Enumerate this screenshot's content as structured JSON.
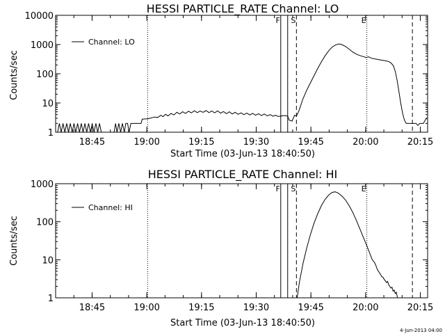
{
  "chart_data": [
    {
      "type": "line",
      "title": "HESSI PARTICLE_RATE Channel: LO",
      "xlabel": "Start Time (03-Jun-13 18:40:50)",
      "ylabel": "Counts/sec",
      "yscale": "log",
      "ylim": [
        1,
        10000
      ],
      "yticks": [
        1,
        10,
        100,
        1000,
        10000
      ],
      "ytick_labels": [
        "1",
        "10",
        "100",
        "1000",
        "10000"
      ],
      "xlim": [
        -5.83,
        96.17
      ],
      "xticks": [
        4.17,
        19.17,
        34.17,
        49.17,
        64.17,
        79.17,
        94.17
      ],
      "xtick_labels": [
        "18:45",
        "19:00",
        "19:15",
        "19:30",
        "19:45",
        "20:00",
        "20:15"
      ],
      "legend": {
        "label": "Channel: LO",
        "position": "top-left"
      },
      "markers": [
        {
          "label": "F",
          "x": 55.9,
          "style": "solid"
        },
        {
          "label": "",
          "x": 57.8,
          "style": "solid"
        },
        {
          "label": "S",
          "x": 60.2,
          "style": "dashed"
        },
        {
          "label": "E",
          "x": 79.5,
          "style": "dotted"
        },
        {
          "label": "",
          "x": 92.0,
          "style": "dashed"
        },
        {
          "label": "",
          "x": 97.0,
          "style": "dotted"
        },
        {
          "label": "",
          "x": 19.4,
          "style": "dotted"
        }
      ],
      "series": [
        {
          "values": [
            [
              -5.3,
              1
            ],
            [
              -4.8,
              2
            ],
            [
              -4.3,
              1
            ],
            [
              -3.8,
              2
            ],
            [
              -3.3,
              1
            ],
            [
              -2.8,
              2
            ],
            [
              -2.3,
              1
            ],
            [
              -1.8,
              2
            ],
            [
              -1.3,
              1
            ],
            [
              -0.8,
              2
            ],
            [
              -0.3,
              1
            ],
            [
              0.2,
              2
            ],
            [
              0.7,
              1
            ],
            [
              1.2,
              2
            ],
            [
              1.7,
              1
            ],
            [
              2.2,
              2
            ],
            [
              2.7,
              1
            ],
            [
              3.2,
              2
            ],
            [
              3.7,
              1
            ],
            [
              4.2,
              2
            ],
            [
              4.7,
              1
            ],
            [
              5.2,
              2
            ],
            [
              5.7,
              1
            ],
            [
              6.2,
              2
            ],
            [
              6.7,
              1
            ],
            [
              7.4,
              1
            ],
            [
              8.2,
              1
            ],
            [
              9.2,
              1
            ],
            [
              10.2,
              1
            ],
            [
              10.6,
              2
            ],
            [
              11.0,
              1
            ],
            [
              11.5,
              2
            ],
            [
              12.0,
              1
            ],
            [
              12.5,
              2
            ],
            [
              13.0,
              1
            ],
            [
              13.4,
              2
            ],
            [
              13.9,
              2
            ],
            [
              14.3,
              1
            ],
            [
              14.8,
              2
            ],
            [
              15.3,
              2
            ],
            [
              15.8,
              2
            ],
            [
              16.3,
              2
            ],
            [
              16.8,
              2
            ],
            [
              17.2,
              2
            ],
            [
              17.6,
              2
            ],
            [
              17.9,
              2.8
            ],
            [
              19.5,
              2.9
            ],
            [
              20.4,
              3.1
            ],
            [
              21.3,
              3.3
            ],
            [
              22.2,
              3.2
            ],
            [
              23.0,
              3.8
            ],
            [
              23.6,
              3.4
            ],
            [
              24.3,
              4.1
            ],
            [
              25.0,
              3.6
            ],
            [
              25.8,
              4.4
            ],
            [
              26.6,
              3.9
            ],
            [
              27.4,
              4.8
            ],
            [
              28.2,
              4.2
            ],
            [
              29.0,
              5.0
            ],
            [
              29.8,
              4.4
            ],
            [
              30.6,
              5.2
            ],
            [
              31.4,
              4.6
            ],
            [
              32.2,
              5.4
            ],
            [
              33.0,
              4.7
            ],
            [
              33.8,
              5.3
            ],
            [
              34.6,
              4.8
            ],
            [
              35.4,
              5.5
            ],
            [
              36.2,
              4.7
            ],
            [
              37.0,
              5.3
            ],
            [
              37.8,
              4.6
            ],
            [
              38.6,
              5.4
            ],
            [
              39.4,
              4.5
            ],
            [
              40.2,
              5.1
            ],
            [
              41.0,
              4.3
            ],
            [
              41.8,
              5.0
            ],
            [
              42.6,
              4.2
            ],
            [
              43.4,
              4.8
            ],
            [
              44.2,
              4.1
            ],
            [
              45.0,
              4.6
            ],
            [
              45.8,
              4.0
            ],
            [
              46.6,
              4.5
            ],
            [
              47.4,
              3.9
            ],
            [
              48.2,
              4.4
            ],
            [
              49.0,
              3.8
            ],
            [
              49.8,
              4.3
            ],
            [
              50.6,
              3.7
            ],
            [
              51.4,
              4.2
            ],
            [
              52.2,
              3.6
            ],
            [
              53.0,
              4.0
            ],
            [
              53.8,
              3.5
            ],
            [
              54.5,
              3.8
            ],
            [
              55.0,
              3.5
            ],
            [
              55.9,
              3.5
            ],
            [
              56.4,
              3.7
            ],
            [
              57.8,
              3.6
            ],
            [
              58.2,
              2.6
            ],
            [
              59.0,
              2.4
            ],
            [
              59.7,
              3.8
            ],
            [
              60.2,
              3.5
            ],
            [
              60.9,
              5.5
            ],
            [
              62.0,
              14
            ],
            [
              63.0,
              27
            ],
            [
              64.0,
              48
            ],
            [
              65.0,
              85
            ],
            [
              66.0,
              150
            ],
            [
              67.0,
              250
            ],
            [
              68.0,
              400
            ],
            [
              69.0,
              600
            ],
            [
              70.0,
              820
            ],
            [
              71.0,
              980
            ],
            [
              71.8,
              1050
            ],
            [
              72.6,
              1000
            ],
            [
              73.6,
              870
            ],
            [
              74.6,
              700
            ],
            [
              75.6,
              560
            ],
            [
              76.6,
              470
            ],
            [
              77.6,
              420
            ],
            [
              78.4,
              390
            ],
            [
              79.3,
              360
            ],
            [
              80.0,
              380
            ],
            [
              80.8,
              340
            ],
            [
              81.8,
              320
            ],
            [
              82.8,
              305
            ],
            [
              83.8,
              290
            ],
            [
              84.8,
              275
            ],
            [
              85.6,
              258
            ],
            [
              86.2,
              230
            ],
            [
              86.8,
              185
            ],
            [
              87.3,
              120
            ],
            [
              87.8,
              60
            ],
            [
              88.3,
              25
            ],
            [
              88.8,
              10
            ],
            [
              89.3,
              4.5
            ],
            [
              89.8,
              2.6
            ],
            [
              90.3,
              2.0
            ],
            [
              92.0,
              2.0
            ],
            [
              93.0,
              2.0
            ],
            [
              93.5,
              1.7
            ],
            [
              94.0,
              2.0
            ],
            [
              95.0,
              2.0
            ],
            [
              95.5,
              2.6
            ],
            [
              95.9,
              3.0
            ]
          ]
        }
      ]
    },
    {
      "type": "line",
      "title": "HESSI PARTICLE_RATE Channel: HI",
      "xlabel": "Start Time (03-Jun-13 18:40:50)",
      "ylabel": "Counts/sec",
      "yscale": "log",
      "ylim": [
        1,
        1000
      ],
      "yticks": [
        1,
        10,
        100,
        1000
      ],
      "ytick_labels": [
        "1",
        "10",
        "100",
        "1000"
      ],
      "xlim": [
        -5.83,
        96.17
      ],
      "xticks": [
        4.17,
        19.17,
        34.17,
        49.17,
        64.17,
        79.17,
        94.17
      ],
      "xtick_labels": [
        "18:45",
        "19:00",
        "19:15",
        "19:30",
        "19:45",
        "20:00",
        "20:15"
      ],
      "legend": {
        "label": "Channel: HI",
        "position": "top-left"
      },
      "markers": [
        {
          "label": "F",
          "x": 55.9,
          "style": "solid"
        },
        {
          "label": "",
          "x": 57.8,
          "style": "solid"
        },
        {
          "label": "S",
          "x": 60.2,
          "style": "dashed"
        },
        {
          "label": "E",
          "x": 79.5,
          "style": "dotted"
        },
        {
          "label": "",
          "x": 92.0,
          "style": "dashed"
        },
        {
          "label": "",
          "x": 97.0,
          "style": "dotted"
        },
        {
          "label": "",
          "x": 19.4,
          "style": "dotted"
        }
      ],
      "series": [
        {
          "values": [
            [
              60.4,
              1.0
            ],
            [
              61.0,
              2.5
            ],
            [
              62.0,
              8
            ],
            [
              63.0,
              20
            ],
            [
              64.0,
              45
            ],
            [
              65.0,
              90
            ],
            [
              66.0,
              160
            ],
            [
              67.0,
              260
            ],
            [
              68.0,
              380
            ],
            [
              69.0,
              500
            ],
            [
              70.0,
              590
            ],
            [
              70.8,
              610
            ],
            [
              71.6,
              570
            ],
            [
              72.6,
              480
            ],
            [
              73.6,
              380
            ],
            [
              74.6,
              270
            ],
            [
              75.6,
              180
            ],
            [
              76.6,
              110
            ],
            [
              77.6,
              65
            ],
            [
              78.6,
              38
            ],
            [
              79.6,
              22
            ],
            [
              80.4,
              14
            ],
            [
              81.0,
              10
            ],
            [
              81.6,
              8.5
            ],
            [
              82.0,
              7
            ],
            [
              82.4,
              5.5
            ],
            [
              82.8,
              4.8
            ],
            [
              83.2,
              4.2
            ],
            [
              83.6,
              3.6
            ],
            [
              84.0,
              3.4
            ],
            [
              84.3,
              3.0
            ],
            [
              84.6,
              2.8
            ],
            [
              84.9,
              2.5
            ],
            [
              85.2,
              2.7
            ],
            [
              85.5,
              2.2
            ],
            [
              85.8,
              2.0
            ],
            [
              86.1,
              1.8
            ],
            [
              86.4,
              1.9
            ],
            [
              86.7,
              1.5
            ],
            [
              87.0,
              1.6
            ],
            [
              87.3,
              1.3
            ],
            [
              87.6,
              1.4
            ],
            [
              87.9,
              1.0
            ]
          ]
        }
      ]
    }
  ],
  "footer": {
    "date_stamp": "4-Jun-2013 04:00"
  }
}
